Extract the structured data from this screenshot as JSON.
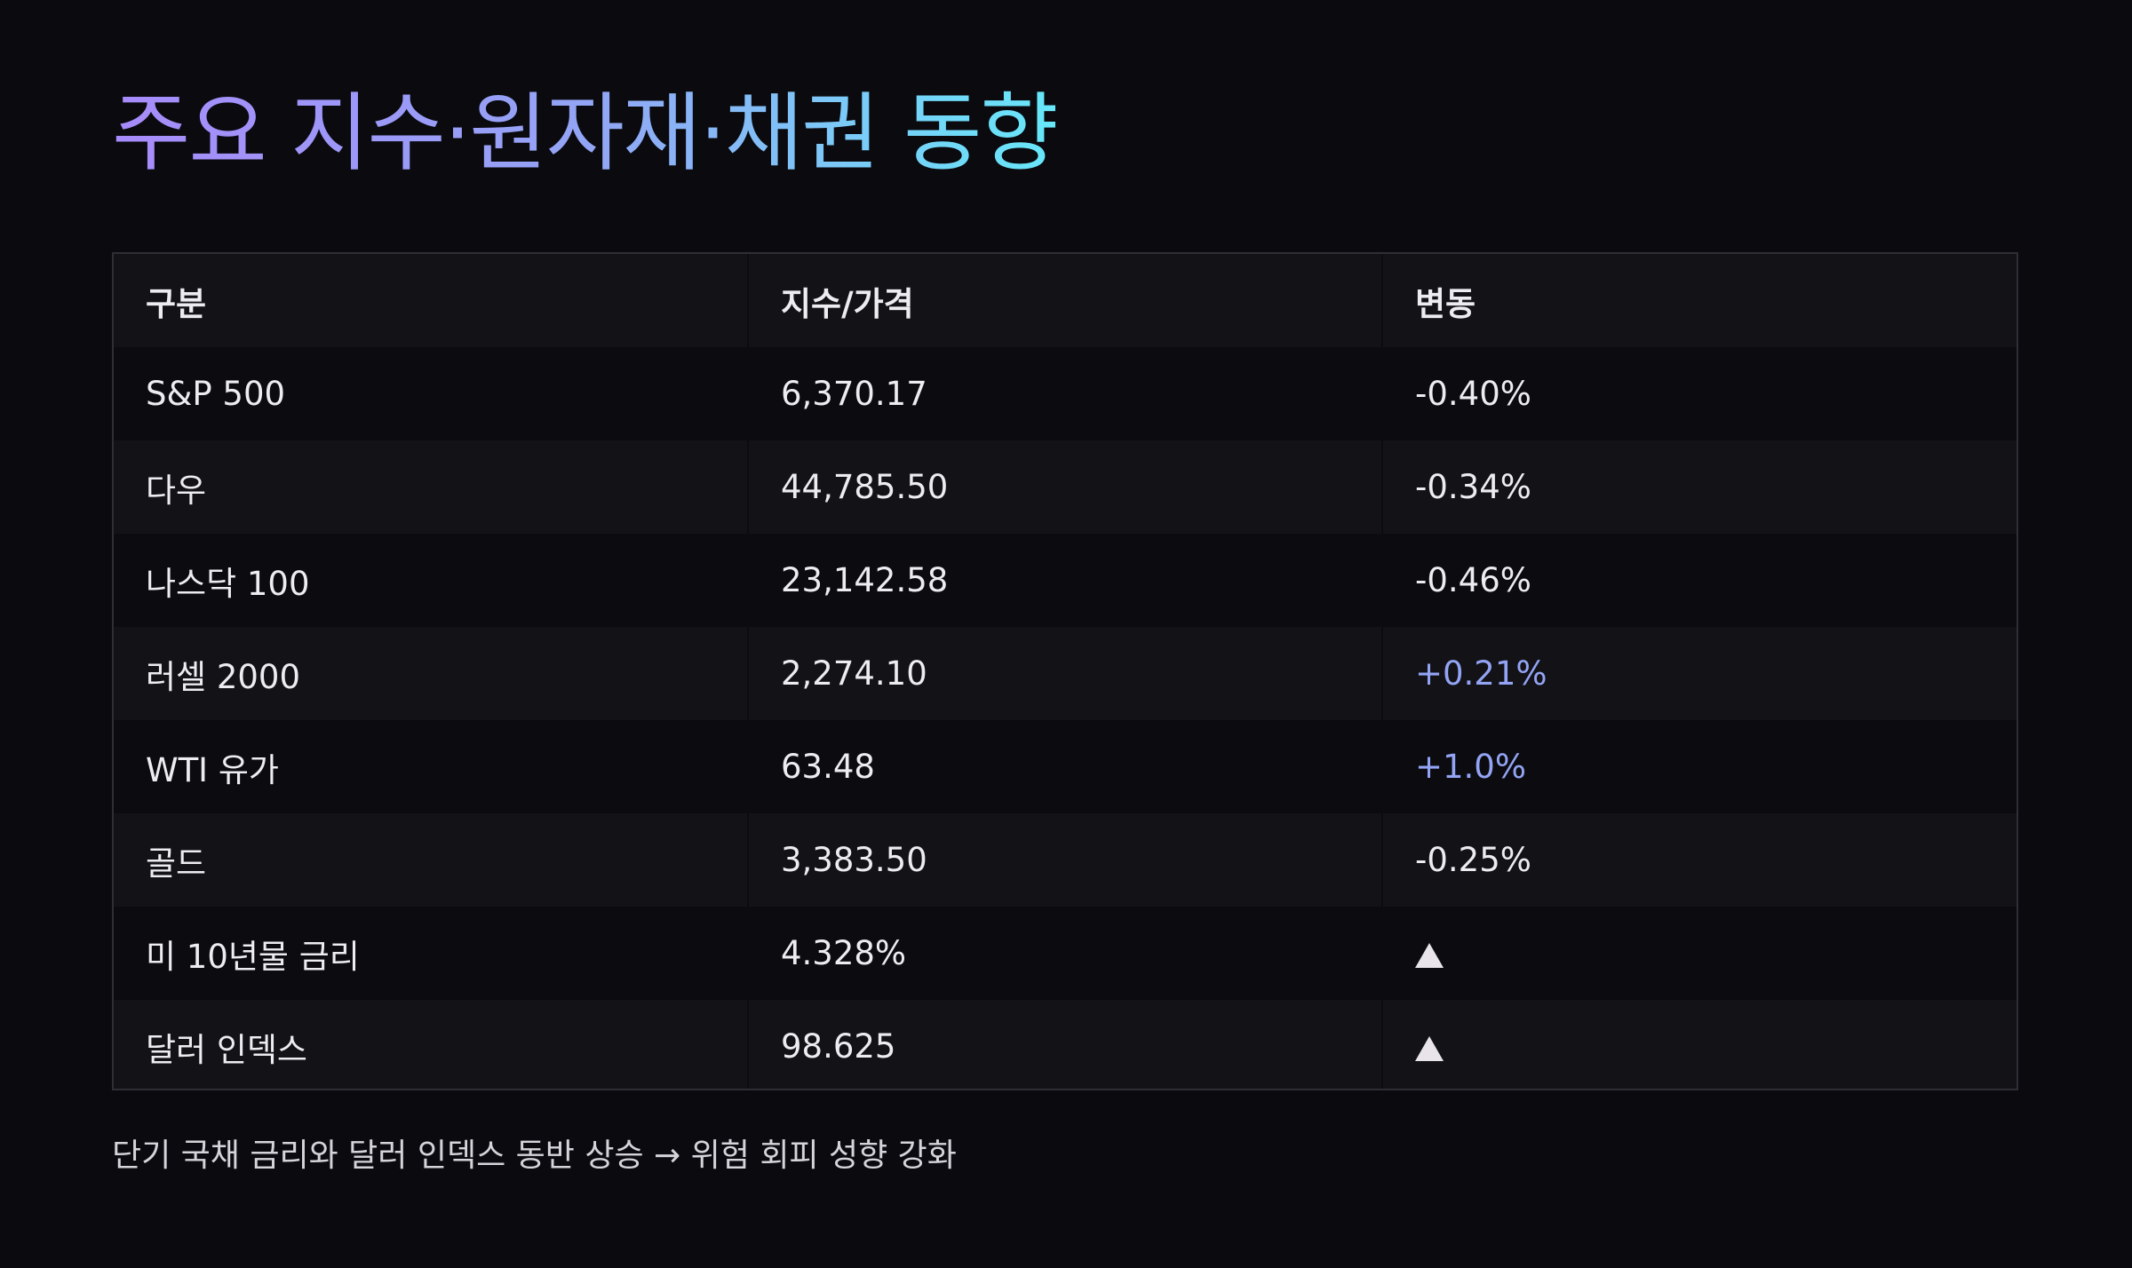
{
  "title": "주요 지수·원자재·채권 동향",
  "table": {
    "headers": [
      "구분",
      "지수/가격",
      "변동"
    ],
    "rows": [
      {
        "name": "S&P 500",
        "value": "6,370.17",
        "change": "-0.40%",
        "direction": "down"
      },
      {
        "name": "다우",
        "value": "44,785.50",
        "change": "-0.34%",
        "direction": "down"
      },
      {
        "name": "나스닥 100",
        "value": "23,142.58",
        "change": "-0.46%",
        "direction": "down"
      },
      {
        "name": "러셀 2000",
        "value": "2,274.10",
        "change": "+0.21%",
        "direction": "up"
      },
      {
        "name": "WTI 유가",
        "value": "63.48",
        "change": "+1.0%",
        "direction": "up"
      },
      {
        "name": "골드",
        "value": "3,383.50",
        "change": "-0.25%",
        "direction": "down"
      },
      {
        "name": "미 10년물 금리",
        "value": "4.328%",
        "change": "",
        "direction": "up-triangle-icon"
      },
      {
        "name": "달러 인덱스",
        "value": "98.625",
        "change": "",
        "direction": "up-triangle-icon"
      }
    ]
  },
  "caption": "단기 국채 금리와 달러 인덱스 동반 상승 → 위험 회피 성향 강화",
  "colors": {
    "background": "#0a0a0f",
    "title_gradient_start": "#a78bfa",
    "title_gradient_end": "#67e8f9",
    "positive_change": "#93a4f4",
    "text": "#ececf1"
  }
}
